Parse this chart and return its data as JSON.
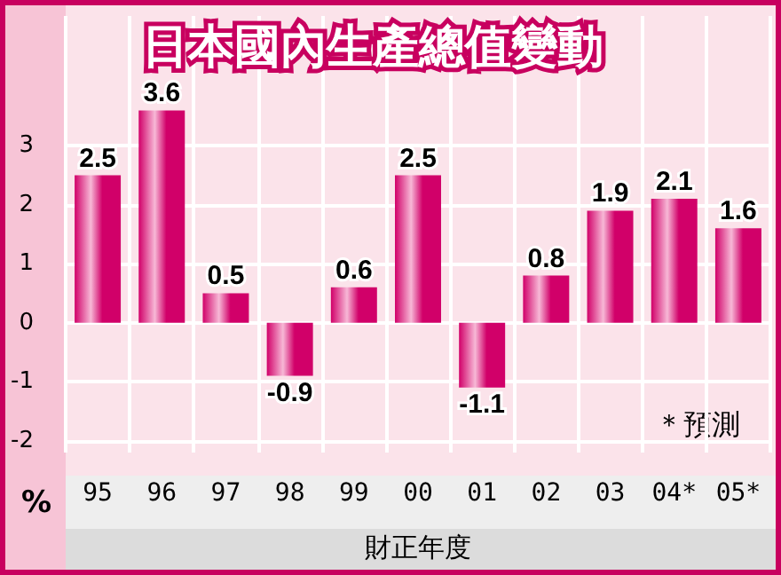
{
  "chart_data": {
    "type": "bar",
    "title": "日本國內生產總值變動",
    "xlabel": "財正年度",
    "ylabel": "%",
    "categories": [
      "95",
      "96",
      "97",
      "98",
      "99",
      "00",
      "01",
      "02",
      "03",
      "04*",
      "05*"
    ],
    "values": [
      2.5,
      3.6,
      0.5,
      -0.9,
      0.6,
      2.5,
      -1.1,
      0.8,
      1.9,
      2.1,
      1.6
    ],
    "color": "#d10069",
    "ylim": [
      -2.2,
      5.2
    ],
    "yticks": [
      -2,
      -1,
      0,
      1,
      2,
      3
    ],
    "grid": true,
    "data_labels": true,
    "annotations": [
      "＊預測"
    ]
  }
}
